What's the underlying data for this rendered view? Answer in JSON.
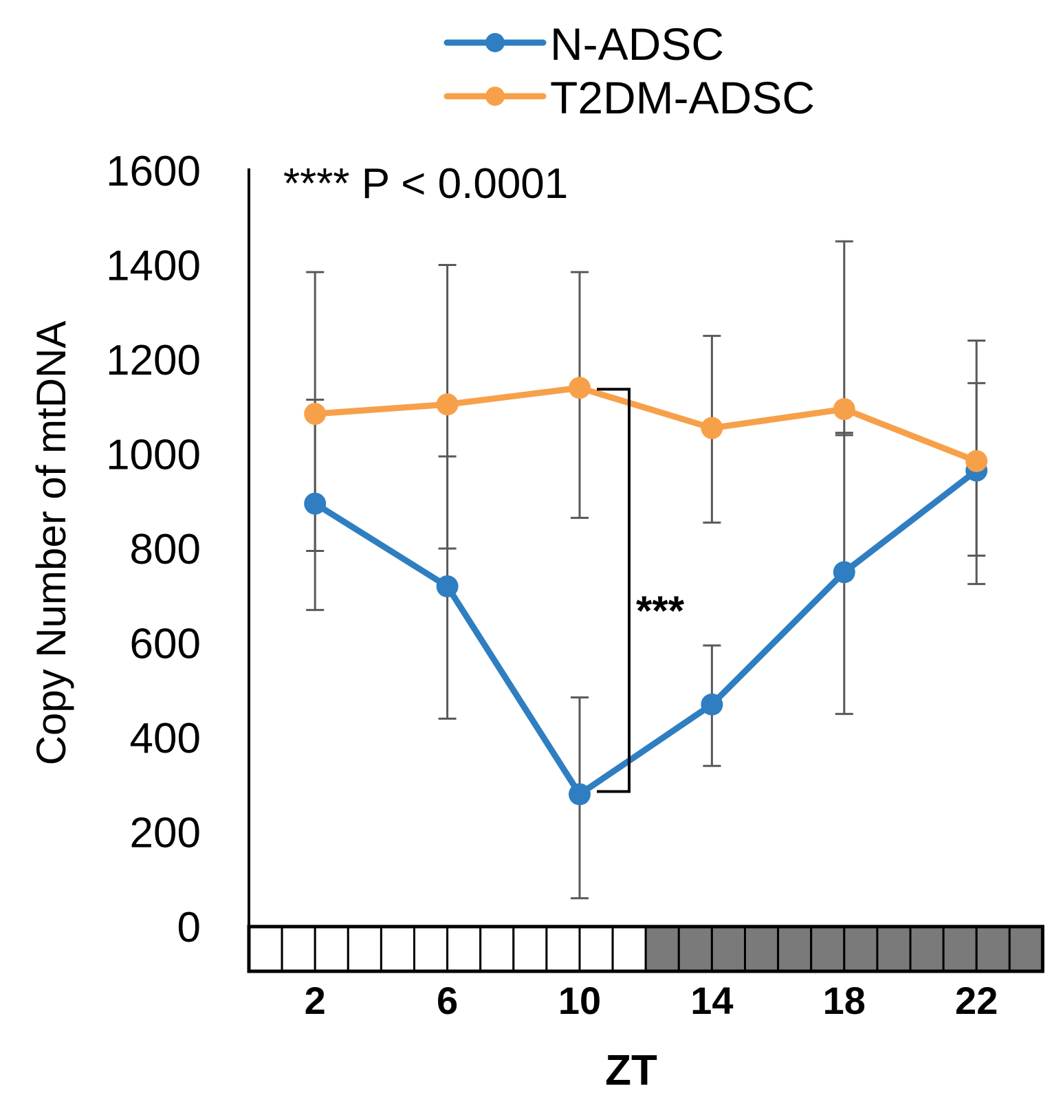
{
  "chart_data": {
    "type": "line",
    "title": "",
    "xlabel": "ZT",
    "ylabel": "Copy Number of mtDNA",
    "x": [
      2,
      6,
      10,
      14,
      18,
      22
    ],
    "ylim": [
      0,
      1600
    ],
    "yticks": [
      0,
      200,
      400,
      600,
      800,
      1000,
      1200,
      1400,
      1600
    ],
    "xticks": [
      2,
      6,
      10,
      14,
      18,
      22
    ],
    "grid": false,
    "legend_position": "top-center",
    "series": [
      {
        "name": "N-ADSC",
        "color": "#2e7ec1",
        "values": [
          895,
          720,
          280,
          470,
          750,
          965
        ],
        "error_low": [
          670,
          440,
          60,
          340,
          450,
          725
        ],
        "error_high": [
          1115,
          995,
          485,
          595,
          1045,
          1150
        ]
      },
      {
        "name": "T2DM-ADSC",
        "color": "#f7a04a",
        "values": [
          1085,
          1105,
          1140,
          1055,
          1095,
          985
        ],
        "error_low": [
          795,
          800,
          865,
          855,
          1040,
          785
        ],
        "error_high": [
          1385,
          1400,
          1385,
          1250,
          1450,
          1240
        ]
      }
    ],
    "annotations": {
      "stats_note": "**** P < 0.0001",
      "bracket_label": "***",
      "bracket_x_between": 10
    },
    "light_dark_bar": {
      "hours": 24,
      "light_hours": 12,
      "light_color": "#ffffff",
      "dark_color": "#7a7a7a"
    }
  }
}
